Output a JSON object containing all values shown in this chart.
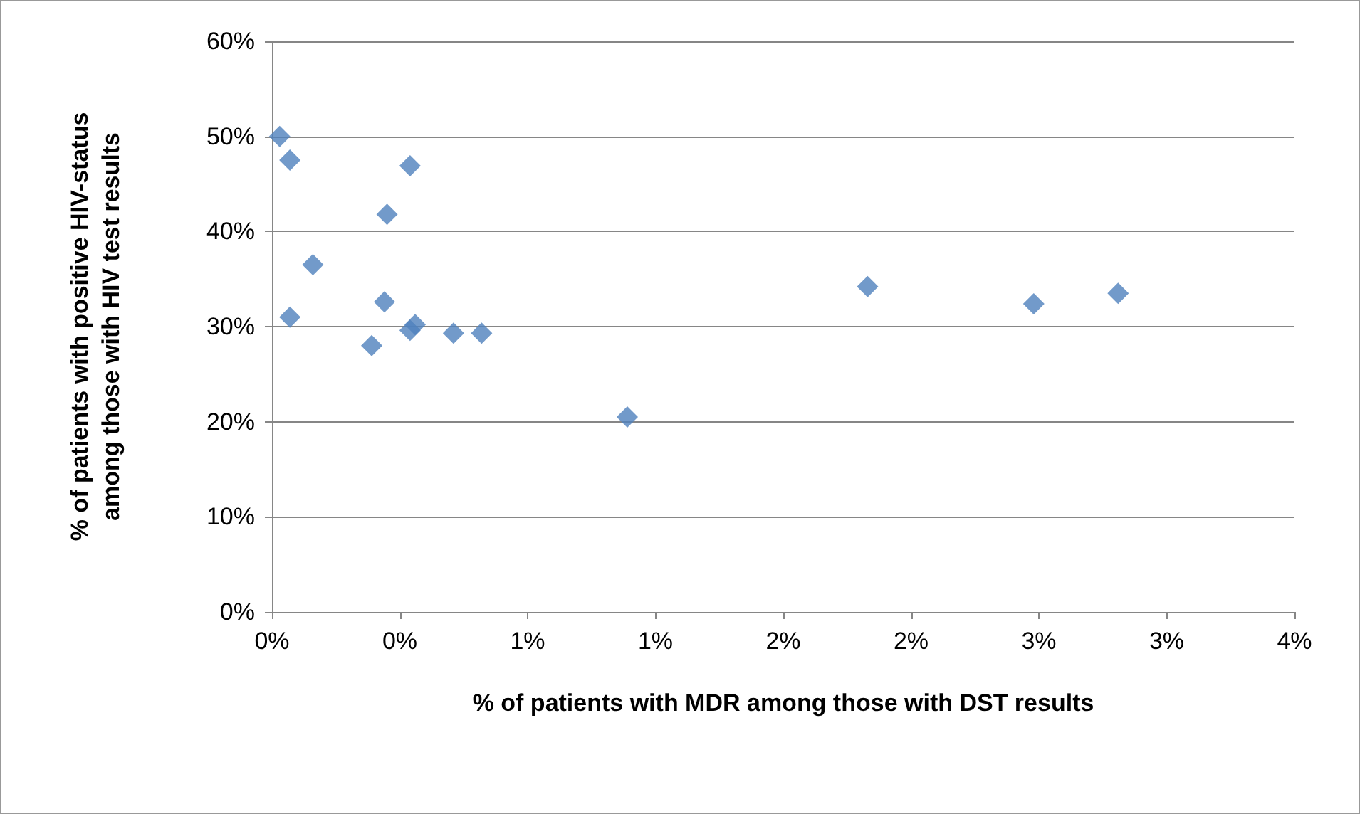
{
  "chart_data": {
    "type": "scatter",
    "xlabel": "% of patients with MDR among those with DST results",
    "ylabel": "% of patients with positive HIV-status among those with HIV test results",
    "x": [
      0.03,
      0.07,
      0.07,
      0.16,
      0.39,
      0.44,
      0.45,
      0.54,
      0.54,
      0.56,
      0.71,
      0.82,
      1.39,
      2.33,
      2.98,
      3.31
    ],
    "series": [
      {
        "color": "#4f81bd",
        "values": [
          50.0,
          47.5,
          31.0,
          36.5,
          28.0,
          32.6,
          41.8,
          46.9,
          29.6,
          30.2,
          29.3,
          29.3,
          20.5,
          34.2,
          32.4,
          33.5
        ]
      }
    ],
    "xlim": [
      0,
      4
    ],
    "xticks": [
      {
        "value": 0,
        "label": "0%"
      },
      {
        "value": 0.5,
        "label": "0%"
      },
      {
        "value": 1,
        "label": "1%"
      },
      {
        "value": 1.5,
        "label": "1%"
      },
      {
        "value": 2,
        "label": "2%"
      },
      {
        "value": 2.5,
        "label": "2%"
      },
      {
        "value": 3,
        "label": "3%"
      },
      {
        "value": 3.5,
        "label": "3%"
      },
      {
        "value": 4,
        "label": "4%"
      }
    ],
    "ylim": [
      0,
      60
    ],
    "yticks": [
      {
        "value": 0,
        "label": "0%"
      },
      {
        "value": 10,
        "label": "10%"
      },
      {
        "value": 20,
        "label": "20%"
      },
      {
        "value": 30,
        "label": "30%"
      },
      {
        "value": 40,
        "label": "40%"
      },
      {
        "value": 50,
        "label": "50%"
      },
      {
        "value": 60,
        "label": "60%"
      }
    ],
    "grid": "y",
    "marker": "diamond"
  }
}
